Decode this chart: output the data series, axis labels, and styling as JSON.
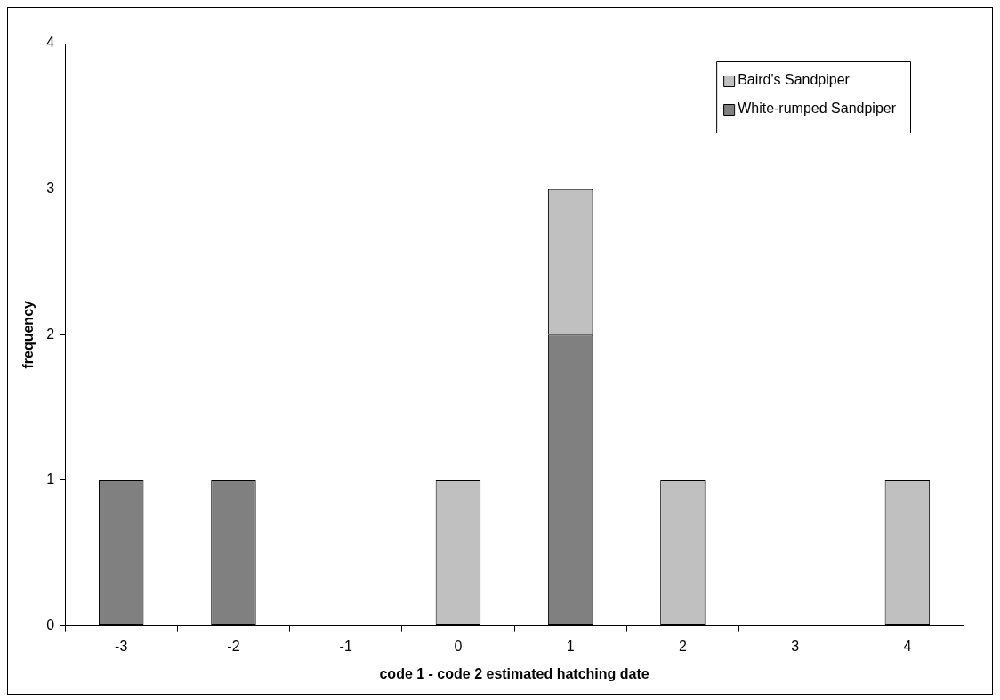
{
  "chart_data": {
    "type": "bar",
    "stacked": true,
    "xlabel": "code 1 - code 2 estimated hatching date",
    "ylabel": "frequency",
    "categories": [
      "-3",
      "-2",
      "-1",
      "0",
      "1",
      "2",
      "3",
      "4"
    ],
    "series": [
      {
        "name": "White-rumped Sandpiper",
        "color": "#808080",
        "values": [
          1,
          1,
          0,
          0,
          2,
          0,
          0,
          0
        ]
      },
      {
        "name": "Baird's Sandpiper",
        "color": "#c0c0c0",
        "values": [
          0,
          0,
          0,
          1,
          1,
          1,
          0,
          1
        ]
      }
    ],
    "ylim": [
      0,
      4
    ],
    "yticks": [
      0,
      1,
      2,
      3,
      4
    ],
    "grid": false,
    "legend": "top right"
  }
}
